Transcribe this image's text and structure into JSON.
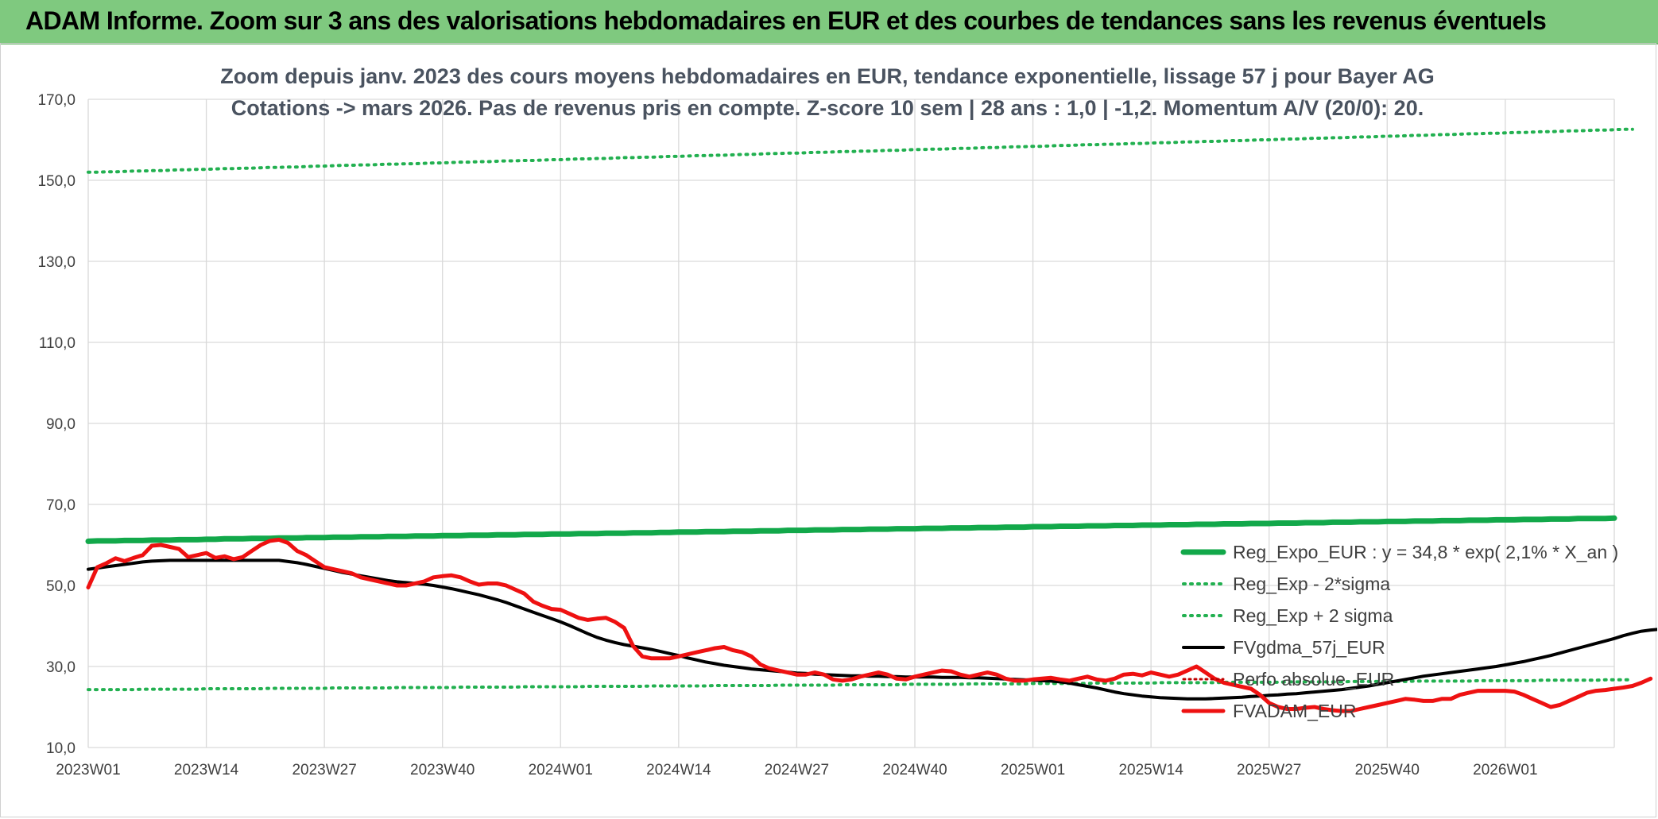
{
  "page": {
    "banner_title": "ADAM Informe. Zoom sur 3 ans des valorisations hebdomadaires en EUR et des courbes de tendances sans les revenus éventuels"
  },
  "chart_data": {
    "type": "line",
    "title_line1": "Zoom depuis janv. 2023 des cours moyens hebdomadaires en EUR, tendance exponentielle, lissage 57 j pour Bayer AG",
    "title_line2": "Cotations -> mars 2026. Pas de revenus pris en compte. Z-score 10 sem | 28 ans : 1,0 | -1,2. Momentum A/V (20/0): 20.",
    "xlabel": "",
    "ylabel": "",
    "ylim": [
      10,
      170
    ],
    "yticks": [
      "10,0",
      "30,0",
      "50,0",
      "70,0",
      "90,0",
      "110,0",
      "130,0",
      "150,0",
      "170,0"
    ],
    "x_count": 169,
    "x_tick_labels": [
      "2023W01",
      "2023W14",
      "2023W27",
      "2023W40",
      "2024W01",
      "2024W14",
      "2024W27",
      "2024W40",
      "2025W01",
      "2025W14",
      "2025W27",
      "2025W40",
      "2026W01"
    ],
    "grid": true,
    "legend_position": "right",
    "colors": {
      "reg_expo": "#12a84a",
      "sigma_band": "#22b050",
      "fvgdma": "#000000",
      "perfo": "#c00000",
      "fvadam": "#ee1111"
    },
    "series": [
      {
        "name": "Reg_Expo_EUR : y = 34,8 * exp( 2,1% *  X_an )",
        "key": "reg_expo",
        "style": "solid-thick",
        "values": [
          60.9,
          61.0,
          61.0,
          61.0,
          61.1,
          61.1,
          61.1,
          61.2,
          61.2,
          61.2,
          61.3,
          61.3,
          61.3,
          61.4,
          61.4,
          61.5,
          61.5,
          61.5,
          61.6,
          61.6,
          61.6,
          61.7,
          61.7,
          61.7,
          61.8,
          61.8,
          61.8,
          61.9,
          61.9,
          61.9,
          62.0,
          62.0,
          62.0,
          62.1,
          62.1,
          62.1,
          62.2,
          62.2,
          62.2,
          62.3,
          62.3,
          62.3,
          62.4,
          62.4,
          62.4,
          62.5,
          62.5,
          62.5,
          62.6,
          62.6,
          62.6,
          62.7,
          62.7,
          62.7,
          62.8,
          62.8,
          62.8,
          62.9,
          62.9,
          62.9,
          63.0,
          63.0,
          63.0,
          63.1,
          63.1,
          63.2,
          63.2,
          63.2,
          63.3,
          63.3,
          63.3,
          63.4,
          63.4,
          63.4,
          63.5,
          63.5,
          63.5,
          63.6,
          63.6,
          63.6,
          63.7,
          63.7,
          63.7,
          63.8,
          63.8,
          63.8,
          63.9,
          63.9,
          63.9,
          64.0,
          64.0,
          64.0,
          64.1,
          64.1,
          64.1,
          64.2,
          64.2,
          64.2,
          64.3,
          64.3,
          64.3,
          64.4,
          64.4,
          64.4,
          64.5,
          64.5,
          64.5,
          64.6,
          64.6,
          64.6,
          64.7,
          64.7,
          64.7,
          64.8,
          64.8,
          64.8,
          64.9,
          64.9,
          64.9,
          65.0,
          65.0,
          65.0,
          65.1,
          65.1,
          65.1,
          65.2,
          65.2,
          65.2,
          65.3,
          65.3,
          65.3,
          65.4,
          65.4,
          65.4,
          65.5,
          65.5,
          65.5,
          65.6,
          65.6,
          65.6,
          65.7,
          65.7,
          65.7,
          65.8,
          65.8,
          65.8,
          65.9,
          65.9,
          65.9,
          66.0,
          66.0,
          66.0,
          66.1,
          66.1,
          66.1,
          66.2,
          66.2,
          66.2,
          66.3,
          66.3,
          66.3,
          66.4,
          66.4,
          66.4,
          66.5,
          66.5,
          66.5,
          66.5,
          66.6
        ]
      },
      {
        "name": "Reg_Exp - 2*sigma",
        "key": "sigma_low",
        "style": "dotted",
        "values": [
          24.3,
          24.3,
          24.3,
          24.3,
          24.3,
          24.3,
          24.4,
          24.4,
          24.4,
          24.4,
          24.4,
          24.4,
          24.4,
          24.5,
          24.5,
          24.5,
          24.5,
          24.5,
          24.5,
          24.5,
          24.6,
          24.6,
          24.6,
          24.6,
          24.6,
          24.6,
          24.6,
          24.7,
          24.7,
          24.7,
          24.7,
          24.7,
          24.7,
          24.7,
          24.8,
          24.8,
          24.8,
          24.8,
          24.8,
          24.8,
          24.8,
          24.9,
          24.9,
          24.9,
          24.9,
          24.9,
          24.9,
          24.9,
          25.0,
          25.0,
          25.0,
          25.0,
          25.0,
          25.0,
          25.0,
          25.1,
          25.1,
          25.1,
          25.1,
          25.1,
          25.1,
          25.1,
          25.2,
          25.2,
          25.2,
          25.2,
          25.2,
          25.2,
          25.2,
          25.3,
          25.3,
          25.3,
          25.3,
          25.3,
          25.3,
          25.3,
          25.4,
          25.4,
          25.4,
          25.4,
          25.4,
          25.4,
          25.4,
          25.5,
          25.5,
          25.5,
          25.5,
          25.5,
          25.5,
          25.5,
          25.6,
          25.6,
          25.6,
          25.6,
          25.6,
          25.6,
          25.6,
          25.7,
          25.7,
          25.7,
          25.7,
          25.7,
          25.7,
          25.7,
          25.8,
          25.8,
          25.8,
          25.8,
          25.8,
          25.8,
          25.8,
          25.9,
          25.9,
          25.9,
          25.9,
          25.9,
          25.9,
          25.9,
          26.0,
          26.0,
          26.0,
          26.0,
          26.0,
          26.0,
          26.0,
          26.1,
          26.1,
          26.1,
          26.1,
          26.1,
          26.1,
          26.1,
          26.2,
          26.2,
          26.2,
          26.2,
          26.2,
          26.2,
          26.2,
          26.3,
          26.3,
          26.3,
          26.3,
          26.3,
          26.3,
          26.3,
          26.4,
          26.4,
          26.4,
          26.4,
          26.4,
          26.4,
          26.4,
          26.5,
          26.5,
          26.5,
          26.5,
          26.5,
          26.5,
          26.5,
          26.6,
          26.6,
          26.6,
          26.6,
          26.6,
          26.6,
          26.6,
          26.7,
          26.7,
          26.7,
          26.7
        ]
      },
      {
        "name": "Reg_Exp + 2 sigma",
        "key": "sigma_high",
        "style": "dotted",
        "values": [
          152.0,
          152.0,
          152.1,
          152.1,
          152.2,
          152.3,
          152.3,
          152.4,
          152.4,
          152.5,
          152.6,
          152.6,
          152.7,
          152.7,
          152.8,
          152.9,
          152.9,
          153.0,
          153.0,
          153.1,
          153.2,
          153.2,
          153.3,
          153.3,
          153.4,
          153.5,
          153.5,
          153.6,
          153.7,
          153.7,
          153.8,
          153.8,
          153.9,
          154.0,
          154.0,
          154.1,
          154.1,
          154.2,
          154.3,
          154.3,
          154.4,
          154.5,
          154.5,
          154.6,
          154.6,
          154.7,
          154.8,
          154.8,
          154.9,
          154.9,
          155.0,
          155.1,
          155.1,
          155.2,
          155.3,
          155.3,
          155.4,
          155.4,
          155.5,
          155.6,
          155.6,
          155.7,
          155.7,
          155.8,
          155.9,
          155.9,
          156.0,
          156.1,
          156.1,
          156.2,
          156.2,
          156.3,
          156.4,
          156.4,
          156.5,
          156.6,
          156.6,
          156.7,
          156.7,
          156.8,
          156.9,
          156.9,
          157.0,
          157.1,
          157.1,
          157.2,
          157.2,
          157.3,
          157.4,
          157.4,
          157.5,
          157.6,
          157.6,
          157.7,
          157.7,
          157.8,
          157.9,
          157.9,
          158.0,
          158.1,
          158.1,
          158.2,
          158.3,
          158.3,
          158.4,
          158.4,
          158.5,
          158.6,
          158.6,
          158.7,
          158.8,
          158.8,
          158.9,
          158.9,
          159.0,
          159.1,
          159.1,
          159.2,
          159.3,
          159.3,
          159.4,
          159.5,
          159.5,
          159.6,
          159.6,
          159.7,
          159.8,
          159.8,
          159.9,
          160.0,
          160.0,
          160.1,
          160.2,
          160.2,
          160.3,
          160.4,
          160.4,
          160.5,
          160.5,
          160.6,
          160.7,
          160.7,
          160.8,
          160.9,
          160.9,
          161.0,
          161.1,
          161.1,
          161.2,
          161.3,
          161.3,
          161.4,
          161.5,
          161.5,
          161.6,
          161.6,
          161.7,
          161.8,
          161.8,
          161.9,
          162.0,
          162.0,
          162.1,
          162.2,
          162.2,
          162.3,
          162.4,
          162.4,
          162.5,
          162.6,
          162.6
        ]
      },
      {
        "name": "FVgdma_57j_EUR",
        "key": "fvgdma",
        "style": "solid",
        "values": [
          54.0,
          54.3,
          54.6,
          54.9,
          55.2,
          55.5,
          55.8,
          56.0,
          56.1,
          56.2,
          56.2,
          56.2,
          56.2,
          56.2,
          56.2,
          56.2,
          56.2,
          56.2,
          56.2,
          56.2,
          56.2,
          56.2,
          55.9,
          55.6,
          55.2,
          54.7,
          54.2,
          53.7,
          53.2,
          52.8,
          52.4,
          52.0,
          51.6,
          51.2,
          50.9,
          50.7,
          50.5,
          50.3,
          50.0,
          49.6,
          49.2,
          48.7,
          48.2,
          47.7,
          47.1,
          46.5,
          45.8,
          45.0,
          44.2,
          43.4,
          42.6,
          41.8,
          41.0,
          40.1,
          39.1,
          38.1,
          37.2,
          36.5,
          35.9,
          35.4,
          35.0,
          34.6,
          34.2,
          33.7,
          33.2,
          32.7,
          32.1,
          31.6,
          31.1,
          30.7,
          30.3,
          30.0,
          29.7,
          29.4,
          29.2,
          29.0,
          28.8,
          28.6,
          28.4,
          28.3,
          28.1,
          28.0,
          27.9,
          27.8,
          27.7,
          27.7,
          27.6,
          27.6,
          27.5,
          27.5,
          27.4,
          27.4,
          27.4,
          27.4,
          27.3,
          27.3,
          27.3,
          27.2,
          27.2,
          27.1,
          27.0,
          26.9,
          26.8,
          26.7,
          26.6,
          26.5,
          26.4,
          26.2,
          25.9,
          25.5,
          25.1,
          24.7,
          24.2,
          23.7,
          23.3,
          23.0,
          22.7,
          22.5,
          22.3,
          22.2,
          22.1,
          22.0,
          22.0,
          22.0,
          22.1,
          22.2,
          22.3,
          22.4,
          22.6,
          22.7,
          22.9,
          23.0,
          23.2,
          23.3,
          23.5,
          23.7,
          23.9,
          24.1,
          24.3,
          24.6,
          24.9,
          25.2,
          25.6,
          26.0,
          26.4,
          26.8,
          27.2,
          27.6,
          27.9,
          28.2,
          28.5,
          28.8,
          29.1,
          29.4,
          29.7,
          30.0,
          30.4,
          30.8,
          31.2,
          31.7,
          32.2,
          32.7,
          33.3,
          33.9,
          34.5,
          35.1,
          35.7,
          36.3,
          36.9,
          37.6,
          38.2,
          38.7,
          39.0,
          39.2,
          39.3
        ]
      },
      {
        "name": "Perfo absolue_EUR",
        "key": "perfo",
        "style": "dotted",
        "values": []
      },
      {
        "name": "FVADAM_EUR",
        "key": "fvadam",
        "style": "solid-thick",
        "values": [
          49.5,
          54.5,
          55.5,
          56.7,
          56.0,
          56.8,
          57.5,
          59.8,
          60.0,
          59.5,
          59.0,
          57.0,
          57.5,
          58.0,
          56.8,
          57.2,
          56.5,
          57.0,
          58.5,
          60.0,
          61.0,
          61.3,
          60.5,
          58.5,
          57.5,
          56.0,
          54.5,
          54.0,
          53.5,
          53.0,
          52.0,
          51.5,
          51.0,
          50.5,
          50.0,
          50.0,
          50.5,
          51.0,
          52.0,
          52.3,
          52.5,
          52.0,
          51.0,
          50.2,
          50.5,
          50.5,
          50.0,
          49.0,
          48.0,
          46.0,
          45.0,
          44.2,
          44.0,
          43.0,
          42.0,
          41.5,
          41.8,
          42.0,
          41.0,
          39.5,
          35.0,
          32.5,
          32.0,
          32.0,
          32.0,
          32.5,
          33.0,
          33.5,
          34.0,
          34.5,
          34.8,
          34.0,
          33.5,
          32.5,
          30.5,
          29.5,
          29.0,
          28.5,
          28.0,
          28.0,
          28.5,
          28.0,
          26.8,
          26.5,
          26.8,
          27.5,
          28.0,
          28.5,
          28.0,
          27.0,
          26.8,
          27.5,
          28.0,
          28.5,
          29.0,
          28.8,
          28.0,
          27.5,
          28.0,
          28.5,
          28.0,
          27.0,
          26.5,
          26.5,
          26.8,
          27.0,
          27.2,
          26.8,
          26.5,
          27.0,
          27.5,
          26.8,
          26.5,
          27.0,
          28.0,
          28.2,
          27.8,
          28.5,
          28.0,
          27.5,
          28.0,
          29.0,
          30.0,
          28.5,
          27.0,
          26.0,
          25.5,
          25.0,
          24.5,
          23.0,
          21.0,
          20.0,
          19.5,
          19.5,
          19.8,
          20.0,
          19.5,
          19.2,
          19.0,
          19.0,
          19.5,
          20.0,
          20.5,
          21.0,
          21.5,
          22.0,
          21.8,
          21.5,
          21.5,
          22.0,
          22.0,
          23.0,
          23.5,
          24.0,
          24.0,
          24.0,
          24.0,
          23.8,
          23.0,
          22.0,
          21.0,
          20.0,
          20.5,
          21.5,
          22.5,
          23.5,
          24.0,
          24.2,
          24.5,
          24.8,
          25.2,
          26.0,
          27.0
        ]
      }
    ]
  }
}
